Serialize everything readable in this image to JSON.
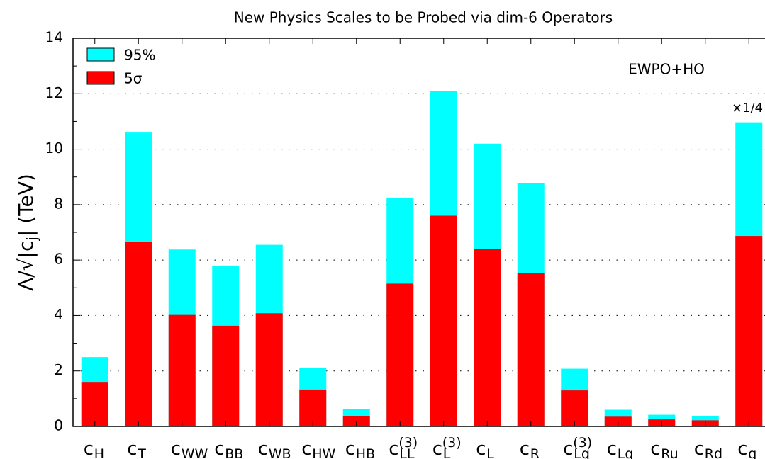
{
  "chart_data": {
    "type": "bar",
    "title": "New Physics Scales to be Probed via dim-6 Operators",
    "y_label": {
      "text": "Λ/√|c",
      "sub": "j",
      "rest": "| (TeV)"
    },
    "categories": [
      {
        "label": "c",
        "sub": "H"
      },
      {
        "label": "c",
        "sub": "T"
      },
      {
        "label": "c",
        "sub": "WW"
      },
      {
        "label": "c",
        "sub": "BB"
      },
      {
        "label": "c",
        "sub": "WB"
      },
      {
        "label": "c",
        "sub": "HW"
      },
      {
        "label": "c",
        "sub": "HB"
      },
      {
        "label": "c",
        "sub": "LL",
        "sup": "(3)"
      },
      {
        "label": "c",
        "sub": "L",
        "sup": "(3)"
      },
      {
        "label": "c",
        "sub": "L"
      },
      {
        "label": "c",
        "sub": "R"
      },
      {
        "label": "c",
        "sub": "Lq",
        "sup": "(3)"
      },
      {
        "label": "c",
        "sub": "Lq"
      },
      {
        "label": "c",
        "sub": "Ru"
      },
      {
        "label": "c",
        "sub": "Rd"
      },
      {
        "label": "c",
        "sub": "q"
      }
    ],
    "series": [
      {
        "name": "95%",
        "color": "#00ffff",
        "values": [
          2.5,
          10.6,
          6.38,
          5.8,
          6.55,
          2.12,
          0.62,
          8.25,
          12.1,
          10.2,
          8.78,
          2.08,
          0.6,
          0.42,
          0.37,
          10.97
        ]
      },
      {
        "name": "5σ",
        "color": "#ff0000",
        "values": [
          1.58,
          6.65,
          4.02,
          3.63,
          4.08,
          1.33,
          0.38,
          5.15,
          7.6,
          6.4,
          5.52,
          1.3,
          0.35,
          0.25,
          0.22,
          6.87
        ]
      }
    ],
    "ylim": [
      0,
      14
    ],
    "yticks": [
      0,
      2,
      4,
      6,
      8,
      10,
      12,
      14
    ],
    "grid": true,
    "legend": "top-left",
    "annotations": [
      {
        "text": "EWPO+HO",
        "color": "#9400d3"
      },
      {
        "text": "×1/4",
        "color": "#000000"
      }
    ]
  }
}
